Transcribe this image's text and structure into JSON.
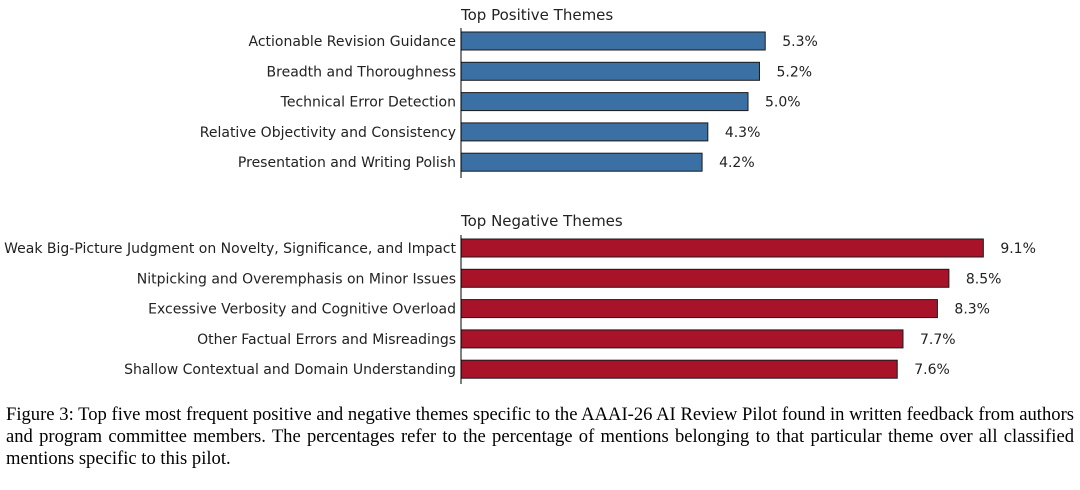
{
  "chart_data": [
    {
      "type": "bar",
      "orientation": "horizontal",
      "title": "Top Positive Themes",
      "categories": [
        "Actionable Revision Guidance",
        "Breadth and Thoroughness",
        "Technical Error Detection",
        "Relative Objectivity and Consistency",
        "Presentation and Writing Polish"
      ],
      "values": [
        5.3,
        5.2,
        5.0,
        4.3,
        4.2
      ],
      "value_labels": [
        "5.3%",
        "5.2%",
        "5.0%",
        "4.3%",
        "4.2%"
      ],
      "color": "#3b70a4",
      "xlim": [
        0,
        10
      ],
      "xlabel": "",
      "ylabel": ""
    },
    {
      "type": "bar",
      "orientation": "horizontal",
      "title": "Top Negative Themes",
      "categories": [
        "Weak Big-Picture Judgment on Novelty, Significance, and Impact",
        "Nitpicking and Overemphasis on Minor Issues",
        "Excessive Verbosity and Cognitive Overload",
        "Other Factual Errors and Misreadings",
        "Shallow Contextual and Domain Understanding"
      ],
      "values": [
        9.1,
        8.5,
        8.3,
        7.7,
        7.6
      ],
      "value_labels": [
        "9.1%",
        "8.5%",
        "8.3%",
        "7.7%",
        "7.6%"
      ],
      "color": "#a8132a",
      "xlim": [
        0,
        10
      ],
      "xlabel": "",
      "ylabel": ""
    }
  ],
  "caption": "Figure 3: Top five most frequent positive and negative themes specific to the AAAI-26 AI Review Pilot found in written feedback from authors and program committee members. The percentages refer to the percentage of mentions belonging to that particular theme over all classified mentions specific to this pilot."
}
